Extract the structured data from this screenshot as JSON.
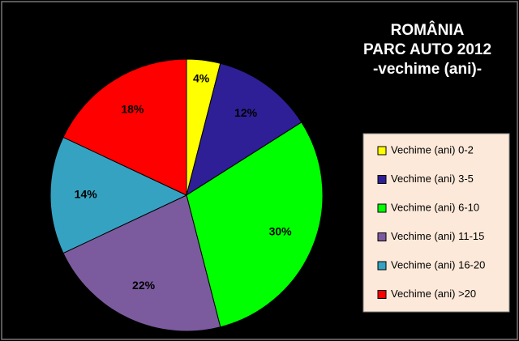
{
  "chart_data": {
    "type": "pie",
    "title": [
      "ROMÂNIA",
      "PARC AUTO 2012",
      "-vechime (ani)-"
    ],
    "categories": [
      "Vechime (ani) 0-2",
      "Vechime (ani) 3-5",
      "Vechime (ani) 6-10",
      "Vechime (ani) 11-15",
      "Vechime (ani) 16-20",
      "Vechime (ani) >20"
    ],
    "values": [
      4,
      12,
      30,
      22,
      14,
      18
    ],
    "value_labels": [
      "4%",
      "12%",
      "30%",
      "22%",
      "14%",
      "18%"
    ],
    "colors": [
      "#ffff00",
      "#2e1f96",
      "#00ff00",
      "#7b5b9e",
      "#36a2c2",
      "#ff0000"
    ],
    "legend": "right"
  }
}
